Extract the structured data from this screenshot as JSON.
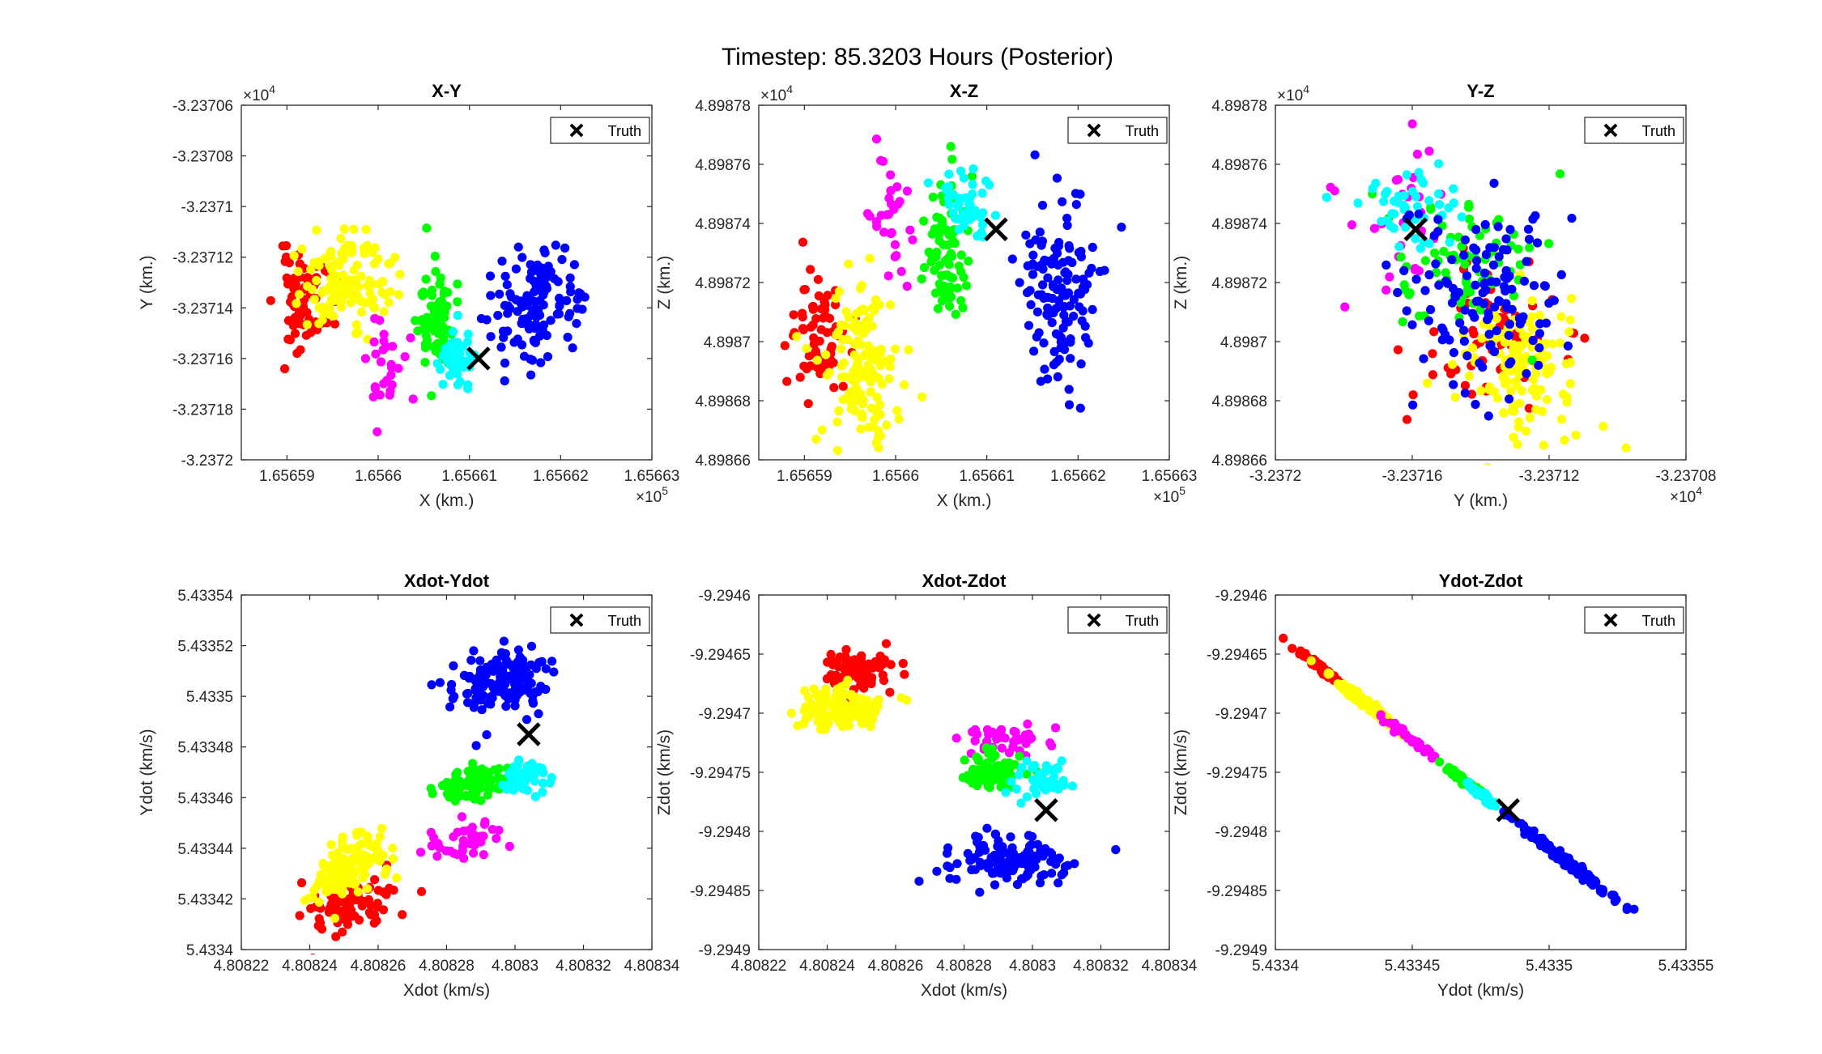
{
  "figure": {
    "suptitle": "Timestep: 85.3203 Hours (Posterior)"
  },
  "colors": {
    "red": "#ff0000",
    "yellow": "#ffff00",
    "magenta": "#ff00ff",
    "green": "#00ff00",
    "cyan": "#00ffff",
    "blue": "#0000ff",
    "truth": "#000000"
  },
  "chart_data": [
    {
      "type": "scatter",
      "id": "xy",
      "title": "X-Y",
      "xlabel": "X (km.)",
      "ylabel": "Y (km.)",
      "x_multiplier": "×10",
      "x_exponent": "5",
      "y_multiplier": "×10",
      "y_exponent": "4",
      "xlim": [
        1.656585,
        1.65663
      ],
      "ylim": [
        -3.2372,
        -3.23706
      ],
      "xticks": [
        1.65659,
        1.6566,
        1.65661,
        1.65662,
        1.65663
      ],
      "xticklabels": [
        "1.65659",
        "1.6566",
        "1.65661",
        "1.65662",
        "1.65663"
      ],
      "yticks": [
        -3.2372,
        -3.23718,
        -3.23716,
        -3.23714,
        -3.23712,
        -3.2371,
        -3.23708,
        -3.23706
      ],
      "yticklabels": [
        "-3.2372",
        "-3.23718",
        "-3.23716",
        "-3.23714",
        "-3.23712",
        "-3.2371",
        "-3.23708",
        "-3.23706"
      ],
      "legend": {
        "label": "Truth",
        "position": "top-right"
      },
      "truth": [
        1.656611,
        -3.23716
      ],
      "clusters": [
        {
          "color": "red",
          "n": 70,
          "cx": 1.656592,
          "cy": -3.237137,
          "sx": 1.6e-06,
          "sy": 9.5e-06,
          "rho": 0,
          "seed": 11
        },
        {
          "color": "yellow",
          "n": 130,
          "cx": 1.6565965,
          "cy": -3.237129,
          "sx": 2.5e-06,
          "sy": 8.5e-06,
          "rho": 0,
          "seed": 12
        },
        {
          "color": "magenta",
          "n": 28,
          "cx": 1.6566005,
          "cy": -3.237164,
          "sx": 1.3e-06,
          "sy": 9e-06,
          "rho": 0,
          "seed": 13
        },
        {
          "color": "green",
          "n": 75,
          "cx": 1.6566065,
          "cy": -3.237145,
          "sx": 1e-06,
          "sy": 1.1e-05,
          "rho": 0,
          "seed": 14
        },
        {
          "color": "cyan",
          "n": 45,
          "cx": 1.6566085,
          "cy": -3.23716,
          "sx": 1e-06,
          "sy": 8e-06,
          "rho": 0,
          "seed": 15
        },
        {
          "color": "blue",
          "n": 130,
          "cx": 1.6566175,
          "cy": -3.237138,
          "sx": 2.4e-06,
          "sy": 1.2e-05,
          "rho": 0,
          "seed": 16
        }
      ]
    },
    {
      "type": "scatter",
      "id": "xz",
      "title": "X-Z",
      "xlabel": "X (km.)",
      "ylabel": "Z (km.)",
      "x_multiplier": "×10",
      "x_exponent": "5",
      "y_multiplier": "×10",
      "y_exponent": "4",
      "xlim": [
        1.656585,
        1.65663
      ],
      "ylim": [
        4.89866,
        4.89878
      ],
      "xticks": [
        1.65659,
        1.6566,
        1.65661,
        1.65662,
        1.65663
      ],
      "xticklabels": [
        "1.65659",
        "1.6566",
        "1.65661",
        "1.65662",
        "1.65663"
      ],
      "yticks": [
        4.89866,
        4.89868,
        4.8987,
        4.89872,
        4.89874,
        4.89876,
        4.89878
      ],
      "yticklabels": [
        "4.89866",
        "4.89868",
        "4.8987",
        "4.89872",
        "4.89874",
        "4.89876",
        "4.89878"
      ],
      "legend": {
        "label": "Truth",
        "position": "top-right"
      },
      "truth": [
        1.656611,
        4.898738
      ],
      "clusters": [
        {
          "color": "red",
          "n": 70,
          "cx": 1.6565915,
          "cy": 4.898702,
          "sx": 1.6e-06,
          "sy": 1.2e-05,
          "rho": 0,
          "seed": 21
        },
        {
          "color": "yellow",
          "n": 130,
          "cx": 1.656596,
          "cy": 4.898693,
          "sx": 2.2e-06,
          "sy": 1.25e-05,
          "rho": 0,
          "seed": 22
        },
        {
          "color": "magenta",
          "n": 30,
          "cx": 1.656599,
          "cy": 4.898742,
          "sx": 1.3e-06,
          "sy": 1.3e-05,
          "rho": 0,
          "seed": 23
        },
        {
          "color": "green",
          "n": 75,
          "cx": 1.6566055,
          "cy": 4.898728,
          "sx": 1.3e-06,
          "sy": 1.2e-05,
          "rho": 0,
          "seed": 24
        },
        {
          "color": "cyan",
          "n": 45,
          "cx": 1.6566075,
          "cy": 4.898745,
          "sx": 1.5e-06,
          "sy": 6.5e-06,
          "rho": 0,
          "seed": 25
        },
        {
          "color": "blue",
          "n": 130,
          "cx": 1.656618,
          "cy": 4.898715,
          "sx": 2.2e-06,
          "sy": 1.6e-05,
          "rho": 0,
          "seed": 26
        }
      ]
    },
    {
      "type": "scatter",
      "id": "yz",
      "title": "Y-Z",
      "xlabel": "Y (km.)",
      "ylabel": "Z (km.)",
      "x_multiplier": "×10",
      "x_exponent": "4",
      "y_multiplier": "×10",
      "y_exponent": "4",
      "xlim": [
        -3.2372,
        -3.23708
      ],
      "ylim": [
        4.89866,
        4.89878
      ],
      "xticks": [
        -3.2372,
        -3.23716,
        -3.23712,
        -3.23708
      ],
      "xticklabels": [
        "-3.2372",
        "-3.23716",
        "-3.23712",
        "-3.23708"
      ],
      "yticks": [
        4.89866,
        4.89868,
        4.8987,
        4.89872,
        4.89874,
        4.89876,
        4.89878
      ],
      "yticklabels": [
        "4.89866",
        "4.89868",
        "4.8987",
        "4.89872",
        "4.89874",
        "4.89876",
        "4.89878"
      ],
      "legend": {
        "label": "Truth",
        "position": "top-right"
      },
      "truth": [
        -3.237159,
        4.898738
      ],
      "clusters": [
        {
          "color": "red",
          "n": 70,
          "cx": -3.237137,
          "cy": 4.898702,
          "sx": 9.5e-06,
          "sy": 1.2e-05,
          "rho": 0,
          "seed": 31
        },
        {
          "color": "yellow",
          "n": 130,
          "cx": -3.237129,
          "cy": 4.898693,
          "sx": 8.5e-06,
          "sy": 1.25e-05,
          "rho": 0,
          "seed": 32
        },
        {
          "color": "magenta",
          "n": 30,
          "cx": -3.237164,
          "cy": 4.898742,
          "sx": 9e-06,
          "sy": 1.3e-05,
          "rho": 0,
          "seed": 33
        },
        {
          "color": "green",
          "n": 75,
          "cx": -3.237145,
          "cy": 4.898728,
          "sx": 1.1e-05,
          "sy": 1.2e-05,
          "rho": 0,
          "seed": 34
        },
        {
          "color": "cyan",
          "n": 45,
          "cx": -3.23716,
          "cy": 4.898745,
          "sx": 8e-06,
          "sy": 6.5e-06,
          "rho": 0,
          "seed": 35
        },
        {
          "color": "blue",
          "n": 130,
          "cx": -3.237138,
          "cy": 4.898715,
          "sx": 1.2e-05,
          "sy": 1.6e-05,
          "rho": 0,
          "seed": 36
        }
      ]
    },
    {
      "type": "scatter",
      "id": "xdot-ydot",
      "title": "Xdot-Ydot",
      "xlabel": "Xdot (km/s)",
      "ylabel": "Ydot (km/s)",
      "xlim": [
        4.80822,
        4.80834
      ],
      "ylim": [
        5.4334,
        5.43354
      ],
      "xticks": [
        4.80822,
        4.80824,
        4.80826,
        4.80828,
        4.8083,
        4.80832,
        4.80834
      ],
      "xticklabels": [
        "4.80822",
        "4.80824",
        "4.80826",
        "4.80828",
        "4.8083",
        "4.80832",
        "4.80834"
      ],
      "yticks": [
        5.4334,
        5.43342,
        5.43344,
        5.43346,
        5.43348,
        5.4335,
        5.43352,
        5.43354
      ],
      "yticklabels": [
        "5.4334",
        "5.43342",
        "5.43344",
        "5.43346",
        "5.43348",
        "5.4335",
        "5.43352",
        "5.43354"
      ],
      "legend": {
        "label": "Truth",
        "position": "top-right"
      },
      "truth": [
        4.808304,
        5.433485
      ],
      "clusters": [
        {
          "color": "red",
          "n": 85,
          "cx": 4.808253,
          "cy": 5.433418,
          "sx": 6e-06,
          "sy": 5.5e-06,
          "rho": 0.4,
          "seed": 41
        },
        {
          "color": "yellow",
          "n": 130,
          "cx": 4.808251,
          "cy": 5.433433,
          "sx": 5.5e-06,
          "sy": 6.5e-06,
          "rho": 0.5,
          "seed": 42
        },
        {
          "color": "magenta",
          "n": 40,
          "cx": 4.808285,
          "cy": 5.433442,
          "sx": 6e-06,
          "sy": 5e-06,
          "rho": 0.4,
          "seed": 43
        },
        {
          "color": "green",
          "n": 85,
          "cx": 4.808286,
          "cy": 5.433465,
          "sx": 5.5e-06,
          "sy": 3.5e-06,
          "rho": 0.3,
          "seed": 44
        },
        {
          "color": "cyan",
          "n": 45,
          "cx": 4.808303,
          "cy": 5.433468,
          "sx": 3.5e-06,
          "sy": 3e-06,
          "rho": 0.2,
          "seed": 45
        },
        {
          "color": "blue",
          "n": 130,
          "cx": 4.808297,
          "cy": 5.433506,
          "sx": 7e-06,
          "sy": 6.5e-06,
          "rho": 0.1,
          "seed": 46
        }
      ]
    },
    {
      "type": "scatter",
      "id": "xdot-zdot",
      "title": "Xdot-Zdot",
      "xlabel": "Xdot (km/s)",
      "ylabel": "Zdot (km/s)",
      "xlim": [
        4.80822,
        4.80834
      ],
      "ylim": [
        -9.2949,
        -9.2946
      ],
      "xticks": [
        4.80822,
        4.80824,
        4.80826,
        4.80828,
        4.8083,
        4.80832,
        4.80834
      ],
      "xticklabels": [
        "4.80822",
        "4.80824",
        "4.80826",
        "4.80828",
        "4.8083",
        "4.80832",
        "4.80834"
      ],
      "yticks": [
        -9.2949,
        -9.29485,
        -9.2948,
        -9.29475,
        -9.2947,
        -9.29465,
        -9.2946
      ],
      "yticklabels": [
        "-9.2949",
        "-9.29485",
        "-9.2948",
        "-9.29475",
        "-9.2947",
        "-9.29465",
        "-9.2946"
      ],
      "legend": {
        "label": "Truth",
        "position": "top-right"
      },
      "truth": [
        4.808304,
        -9.294782
      ],
      "clusters": [
        {
          "color": "red",
          "n": 85,
          "cx": 4.808248,
          "cy": -9.294665,
          "sx": 5e-06,
          "sy": 9e-06,
          "rho": 0,
          "seed": 51
        },
        {
          "color": "yellow",
          "n": 130,
          "cx": 4.808245,
          "cy": -9.294695,
          "sx": 5.5e-06,
          "sy": 9.5e-06,
          "rho": 0,
          "seed": 52
        },
        {
          "color": "magenta",
          "n": 40,
          "cx": 4.808292,
          "cy": -9.294723,
          "sx": 6.5e-06,
          "sy": 6e-06,
          "rho": 0,
          "seed": 53
        },
        {
          "color": "green",
          "n": 85,
          "cx": 4.808288,
          "cy": -9.29475,
          "sx": 5e-06,
          "sy": 7.5e-06,
          "rho": 0,
          "seed": 54
        },
        {
          "color": "cyan",
          "n": 45,
          "cx": 4.808302,
          "cy": -9.294757,
          "sx": 4e-06,
          "sy": 8e-06,
          "rho": 0,
          "seed": 55
        },
        {
          "color": "blue",
          "n": 130,
          "cx": 4.808294,
          "cy": -9.294825,
          "sx": 8.5e-06,
          "sy": 9.5e-06,
          "rho": 0,
          "seed": 56
        }
      ]
    },
    {
      "type": "scatter",
      "id": "ydot-zdot",
      "title": "Ydot-Zdot",
      "xlabel": "Ydot (km/s)",
      "ylabel": "Zdot (km/s)",
      "xlim": [
        5.4334,
        5.43355
      ],
      "ylim": [
        -9.2949,
        -9.2946
      ],
      "xticks": [
        5.4334,
        5.43345,
        5.4335,
        5.43355
      ],
      "xticklabels": [
        "5.4334",
        "5.43345",
        "5.4335",
        "5.43355"
      ],
      "yticks": [
        -9.2949,
        -9.29485,
        -9.2948,
        -9.29475,
        -9.2947,
        -9.29465,
        -9.2946
      ],
      "yticklabels": [
        "-9.2949",
        "-9.29485",
        "-9.2948",
        "-9.29475",
        "-9.2947",
        "-9.29465",
        "-9.2946"
      ],
      "legend": {
        "label": "Truth",
        "position": "top-right"
      },
      "truth": [
        5.433485,
        -9.294782
      ],
      "line": {
        "p0": [
          5.43341,
          -9.29465
        ],
        "p1": [
          5.43352,
          -9.29485
        ]
      },
      "clusters": [
        {
          "color": "red",
          "n": 70,
          "t_mean": 0.07,
          "t_sd": 0.04,
          "width": 7e-07,
          "seed": 61
        },
        {
          "color": "yellow",
          "n": 130,
          "t_mean": 0.21,
          "t_sd": 0.06,
          "width": 8e-07,
          "seed": 62
        },
        {
          "color": "magenta",
          "n": 40,
          "t_mean": 0.35,
          "t_sd": 0.04,
          "width": 6e-07,
          "seed": 63
        },
        {
          "color": "green",
          "n": 70,
          "t_mean": 0.53,
          "t_sd": 0.035,
          "width": 6e-07,
          "seed": 64
        },
        {
          "color": "cyan",
          "n": 40,
          "t_mean": 0.59,
          "t_sd": 0.03,
          "width": 6e-07,
          "seed": 65
        },
        {
          "color": "blue",
          "n": 130,
          "t_mean": 0.88,
          "t_sd": 0.08,
          "width": 7e-07,
          "seed": 66
        }
      ]
    }
  ]
}
